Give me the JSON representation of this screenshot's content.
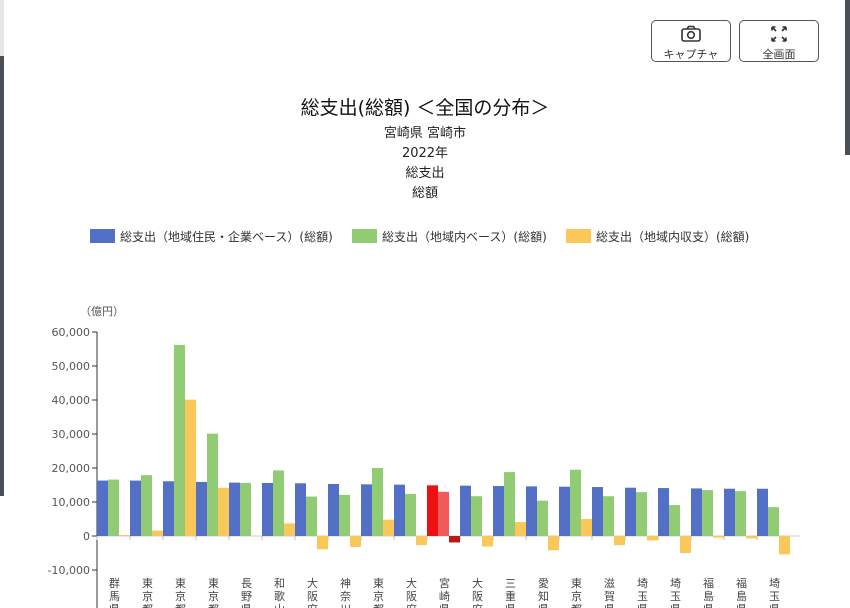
{
  "toolbar": {
    "capture_label": "キャプチャ",
    "capture_icon": "camera-icon",
    "fullscreen_label": "全画面",
    "fullscreen_icon": "expand-icon"
  },
  "header": {
    "title": "総支出(総額) ＜全国の分布＞",
    "subtitle_lines": [
      "宮崎県 宮崎市",
      "2022年",
      "総支出",
      "総額"
    ]
  },
  "chart_data": {
    "type": "bar",
    "unit_label": "（億円）",
    "ylim": [
      -10000,
      60000
    ],
    "yticks": [
      -10000,
      0,
      10000,
      20000,
      30000,
      40000,
      50000,
      60000
    ],
    "ytick_labels": [
      "-10,000",
      "0",
      "10,000",
      "20,000",
      "30,000",
      "40,000",
      "50,000",
      "60,000"
    ],
    "categories": [
      "群馬県",
      "東京都",
      "東京都",
      "東京都",
      "長野県",
      "和歌山",
      "大阪府",
      "神奈川",
      "東京都",
      "大阪府",
      "宮崎県",
      "大阪府",
      "三重県",
      "愛知県",
      "東京都",
      "滋賀県",
      "埼玉県",
      "埼玉県",
      "福島県",
      "福島県",
      "埼玉県"
    ],
    "highlight_index": 10,
    "highlight_colors": [
      "#ee1111",
      "#f05a5a",
      "#b81a1a"
    ],
    "series": [
      {
        "name": "総支出（地域住民・企業ベース）(総額)",
        "color": "#5470c6",
        "values": [
          16300,
          16300,
          16100,
          15900,
          15700,
          15600,
          15500,
          15300,
          15200,
          15100,
          14900,
          14800,
          14700,
          14600,
          14500,
          14400,
          14200,
          14100,
          14000,
          13900,
          13900
        ]
      },
      {
        "name": "総支出（地域内ベース）(総額)",
        "color": "#91cc75",
        "values": [
          16600,
          17900,
          56200,
          30100,
          15600,
          19300,
          11600,
          12100,
          20000,
          12400,
          13000,
          11700,
          18800,
          10400,
          19500,
          11700,
          12900,
          9100,
          13500,
          13200,
          8500
        ]
      },
      {
        "name": "総支出（地域内収支）(総額)",
        "color": "#fac858",
        "values": [
          300,
          1600,
          40100,
          14200,
          -100,
          3700,
          -3900,
          -3200,
          4800,
          -2700,
          -1900,
          -3100,
          4100,
          -4200,
          5000,
          -2700,
          -1300,
          -5000,
          -500,
          -700,
          -5400
        ]
      }
    ]
  }
}
